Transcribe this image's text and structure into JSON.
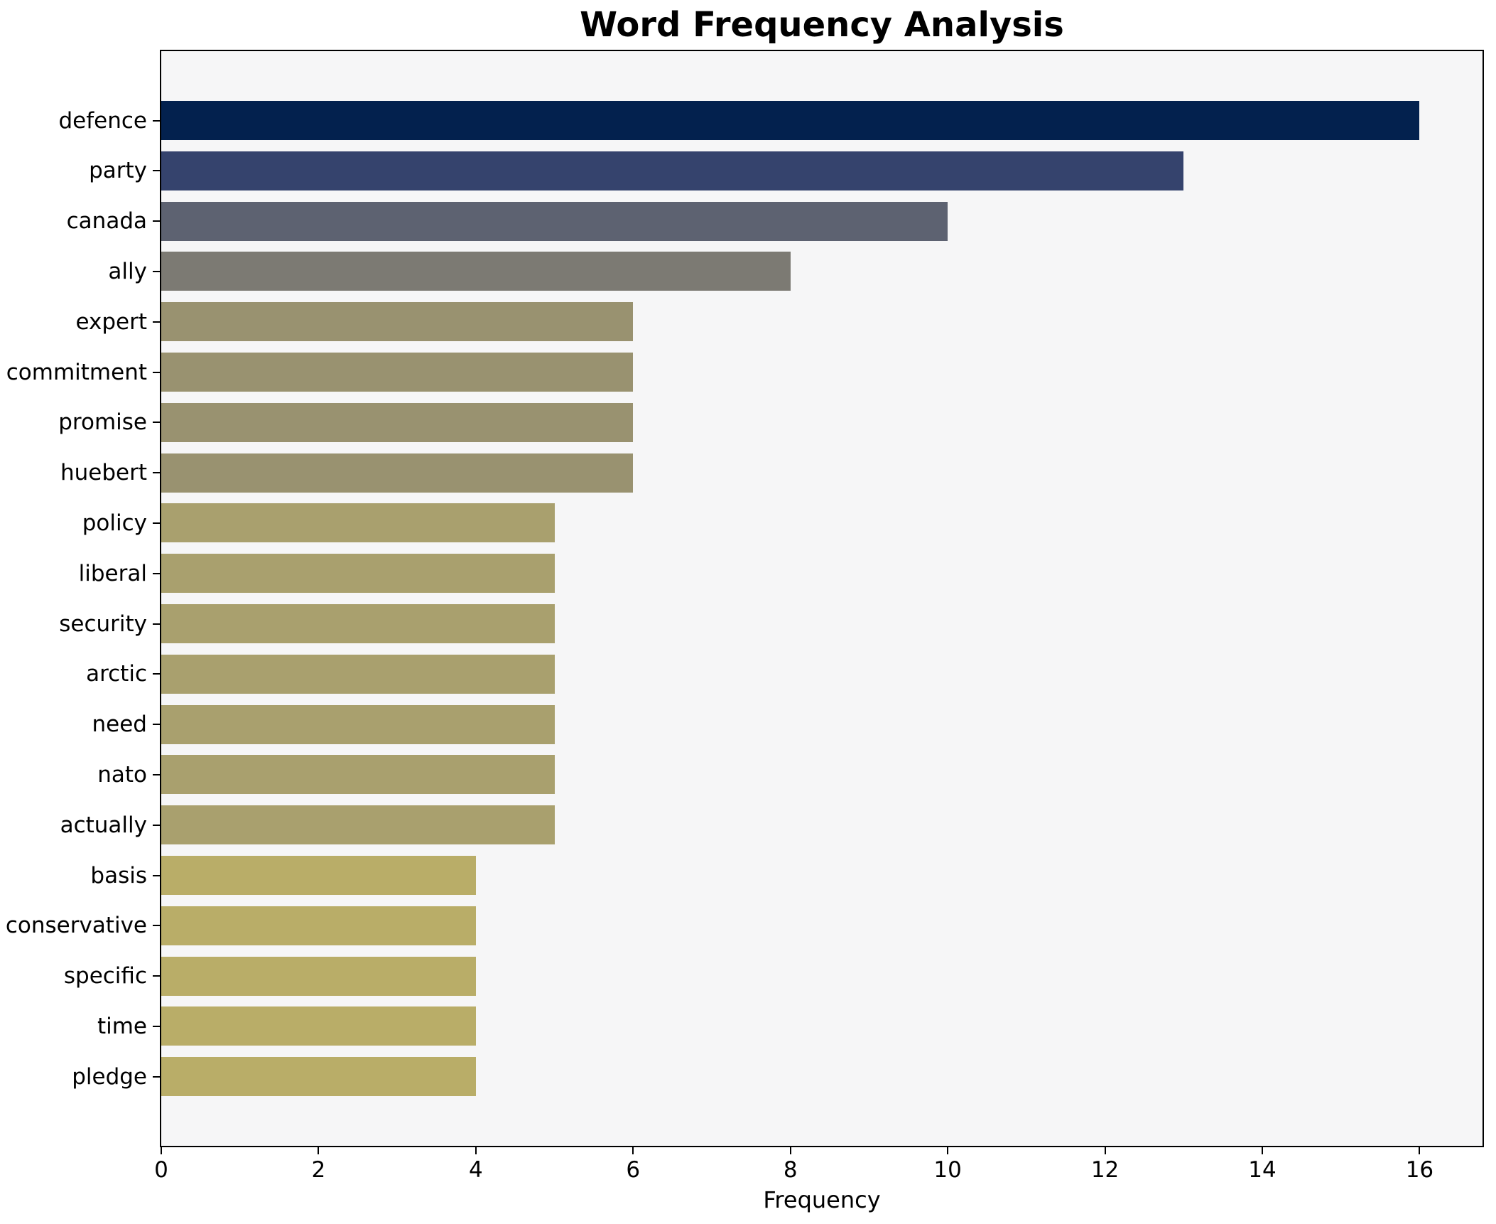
{
  "chart_data": {
    "type": "bar",
    "orientation": "horizontal",
    "title": "Word Frequency Analysis",
    "xlabel": "Frequency",
    "ylabel": "",
    "categories": [
      "defence",
      "party",
      "canada",
      "ally",
      "expert",
      "commitment",
      "promise",
      "huebert",
      "policy",
      "liberal",
      "security",
      "arctic",
      "need",
      "nato",
      "actually",
      "basis",
      "conservative",
      "specific",
      "time",
      "pledge"
    ],
    "values": [
      16,
      13,
      10,
      8,
      6,
      6,
      6,
      6,
      5,
      5,
      5,
      5,
      5,
      5,
      5,
      4,
      4,
      4,
      4,
      4
    ],
    "bar_colors": [
      "#03214e",
      "#35436d",
      "#5d6271",
      "#7c7a73",
      "#999270",
      "#999270",
      "#999270",
      "#999270",
      "#a9a06e",
      "#a9a06e",
      "#a9a06e",
      "#a9a06e",
      "#a9a06e",
      "#a9a06e",
      "#a9a06e",
      "#b9ad68",
      "#b9ad68",
      "#b9ad68",
      "#b9ad68",
      "#b9ad68"
    ],
    "x_ticks": [
      0,
      2,
      4,
      6,
      8,
      10,
      12,
      14,
      16
    ],
    "xlim": [
      0,
      16.8
    ],
    "grid": false,
    "legend": null,
    "colormap": "cividis",
    "colors": {
      "plot_background": "#f6f6f7",
      "figure_background": "#ffffff",
      "spine": "#000000",
      "text": "#000000"
    }
  }
}
